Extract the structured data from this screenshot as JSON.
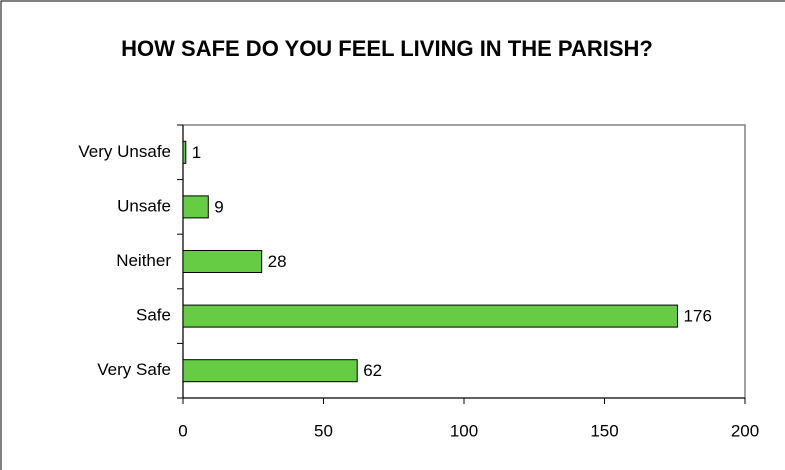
{
  "chart_data": {
    "type": "bar",
    "orientation": "horizontal",
    "title": "HOW SAFE DO YOU FEEL LIVING IN THE PARISH?",
    "categories": [
      "Very Unsafe",
      "Unsafe",
      "Neither",
      "Safe",
      "Very Safe"
    ],
    "values": [
      1,
      9,
      28,
      176,
      62
    ],
    "color": "#66cc44",
    "xlim": [
      0,
      200
    ],
    "xticks": [
      0,
      50,
      100,
      150,
      200
    ],
    "grid": false
  }
}
